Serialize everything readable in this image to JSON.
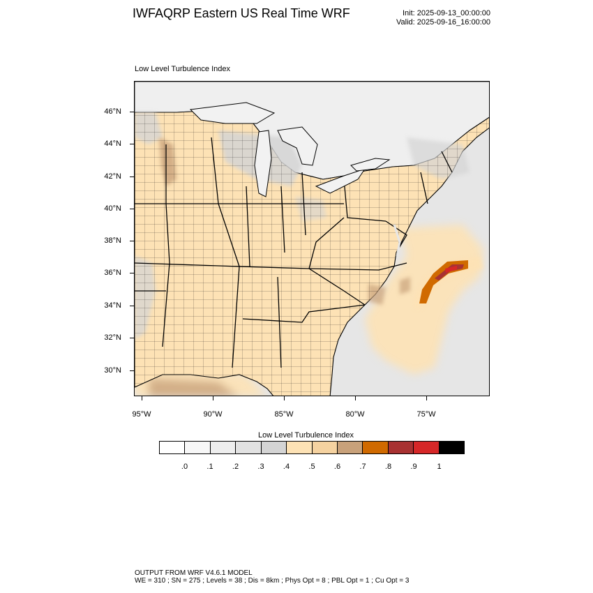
{
  "header": {
    "title": "IWFAQRP Eastern US Real Time WRF",
    "init": "Init: 2025-09-13_00:00:00",
    "valid": "Valid: 2025-09-16_16:00:00"
  },
  "panel": {
    "title": "Low Level Turbulence Index"
  },
  "map": {
    "lat_labels": [
      "46°N",
      "44°N",
      "42°N",
      "40°N",
      "38°N",
      "36°N",
      "34°N",
      "32°N",
      "30°N"
    ],
    "lon_labels": [
      "95°W",
      "90°W",
      "85°W",
      "80°W",
      "75°W"
    ],
    "colors": {
      "land_base": "#fde2b5",
      "ocean": "#e6e6e6",
      "great_lakes": "#f2f2f2",
      "canada": "#efefef",
      "county_lines": "#000000",
      "max_core": "#d62728"
    }
  },
  "colorbar": {
    "title": "Low Level Turbulence Index",
    "labels": [
      ".0",
      ".1",
      ".2",
      ".3",
      ".4",
      ".5",
      ".6",
      ".7",
      ".8",
      ".9",
      "1"
    ],
    "colors": [
      "#ffffff",
      "#f7f7f7",
      "#eeeeee",
      "#e2e2e2",
      "#d4d4d4",
      "#fde2b5",
      "#f5d2a0",
      "#c8a17a",
      "#d06a00",
      "#a83232",
      "#d62728",
      "#000000"
    ]
  },
  "footer": {
    "line1": "OUTPUT FROM WRF V4.6.1 MODEL",
    "line2": "WE = 310 ; SN = 275 ; Levels = 38 ; Dis = 8km ; Phys Opt = 8 ; PBL Opt = 1 ; Cu Opt = 3"
  }
}
